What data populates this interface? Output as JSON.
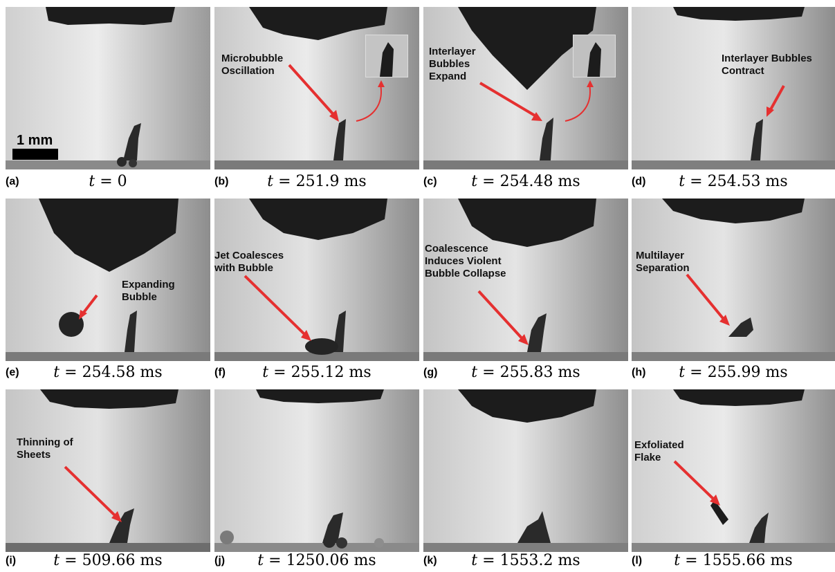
{
  "scale_bar": "1 mm",
  "panels": [
    {
      "letter": "(a)",
      "time_var": "t",
      "time_val": "= 0"
    },
    {
      "letter": "(b)",
      "time_var": "t",
      "time_val": "= 251.9 ms",
      "annotation": [
        "Microbubble",
        "Oscillation"
      ]
    },
    {
      "letter": "(c)",
      "time_var": "t",
      "time_val": "= 254.48 ms",
      "annotation": [
        "Interlayer",
        "Bubbles",
        "Expand"
      ]
    },
    {
      "letter": "(d)",
      "time_var": "t",
      "time_val": "= 254.53 ms",
      "annotation": [
        "Interlayer Bubbles",
        "Contract"
      ]
    },
    {
      "letter": "(e)",
      "time_var": "t",
      "time_val": "= 254.58 ms",
      "annotation": [
        "Expanding",
        "Bubble"
      ]
    },
    {
      "letter": "(f)",
      "time_var": "t",
      "time_val": "= 255.12 ms",
      "annotation": [
        "Jet Coalesces",
        "with Bubble"
      ]
    },
    {
      "letter": "(g)",
      "time_var": "t",
      "time_val": "= 255.83 ms",
      "annotation": [
        "Coalescence",
        "Induces Violent",
        "Bubble Collapse"
      ]
    },
    {
      "letter": "(h)",
      "time_var": "t",
      "time_val": "= 255.99 ms",
      "annotation": [
        "Multilayer",
        "Separation"
      ]
    },
    {
      "letter": "(i)",
      "time_var": "t",
      "time_val": "= 509.66 ms",
      "annotation": [
        "Thinning of",
        "Sheets"
      ]
    },
    {
      "letter": "(j)",
      "time_var": "t",
      "time_val": "= 1250.06 ms"
    },
    {
      "letter": "(k)",
      "time_var": "t",
      "time_val": "= 1553.2 ms"
    },
    {
      "letter": "(l)",
      "time_var": "t",
      "time_val": "= 1555.66 ms",
      "annotation": [
        "Exfoliated",
        "Flake"
      ]
    }
  ],
  "colors": {
    "arrow": "#e53030",
    "dark": "#1c1c1c",
    "background": "#ffffff"
  }
}
